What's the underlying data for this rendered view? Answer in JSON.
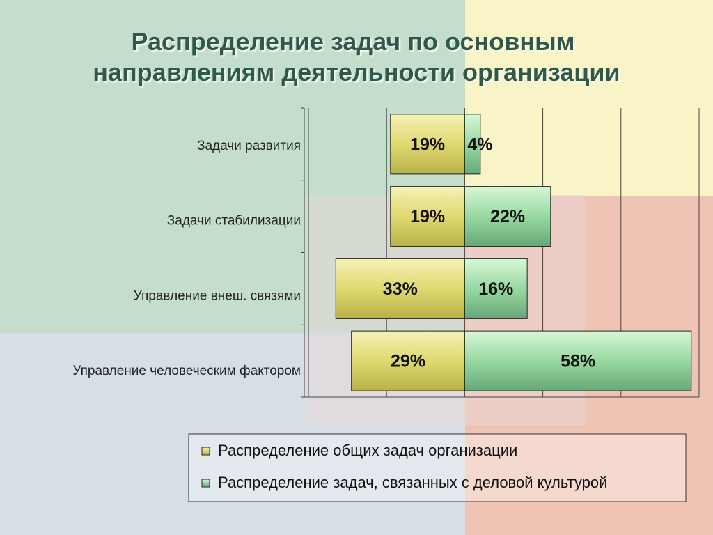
{
  "chart_data": {
    "type": "diverging_bar",
    "title": "Распределение задач по основным направлениям деятельности организации",
    "categories": [
      "Задачи развития",
      "Задачи стабилизации",
      "Управление внеш. связями",
      "Управление человеческим фактором"
    ],
    "series": [
      {
        "name": "Распределение общих задач организации",
        "color": "#e0d870",
        "direction": "left",
        "values": [
          19,
          19,
          33,
          29
        ],
        "value_labels": [
          "19%",
          "19%",
          "33%",
          "29%"
        ]
      },
      {
        "name": "Распределение задач, связанных с деловой культурой",
        "color": "#98d8a0",
        "direction": "right",
        "values": [
          4,
          22,
          16,
          58
        ],
        "value_labels": [
          "4%",
          "22%",
          "16%",
          "58%"
        ]
      }
    ],
    "xlim": [
      -40,
      60
    ],
    "xticks": [
      -40,
      -20,
      0,
      20,
      40,
      60
    ],
    "grid": true
  }
}
